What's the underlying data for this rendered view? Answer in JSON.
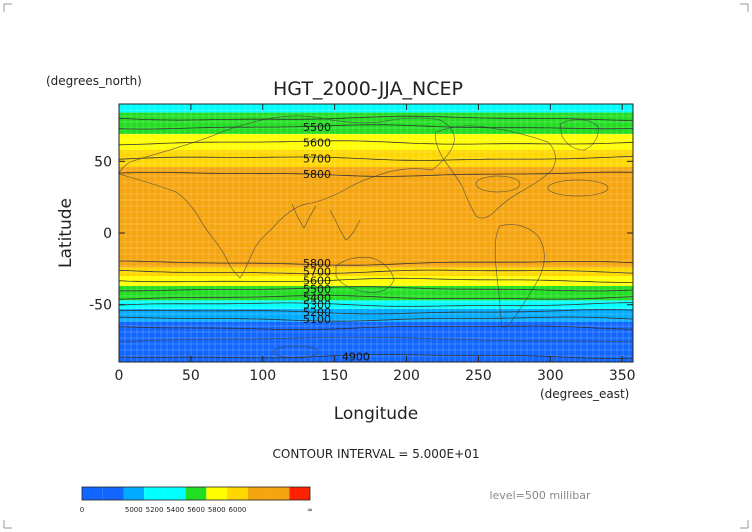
{
  "chart_data": {
    "type": "contour",
    "title": "HGT_2000-JJA_NCEP",
    "xlabel": "Longitude",
    "ylabel": "Latitude",
    "x_units": "(degrees_east)",
    "y_units": "(degrees_north)",
    "xlim": [
      0,
      357.5
    ],
    "ylim": [
      -90,
      90
    ],
    "x_ticks": [
      "0",
      "50",
      "100",
      "150",
      "200",
      "250",
      "300",
      "350"
    ],
    "y_ticks": [
      "50",
      "0",
      "-50"
    ],
    "grid": true,
    "contour_interval": "CONTOUR INTERVAL = 5.000E+01",
    "level": "level=500 millibar",
    "contour_labels": [
      {
        "lon": 128,
        "lat": 74,
        "text": "5500"
      },
      {
        "lon": 128,
        "lat": 63,
        "text": "5600"
      },
      {
        "lon": 128,
        "lat": 52,
        "text": "5700"
      },
      {
        "lon": 128,
        "lat": 41,
        "text": "5800"
      },
      {
        "lon": 128,
        "lat": -21,
        "text": "5800"
      },
      {
        "lon": 128,
        "lat": -27,
        "text": "5700"
      },
      {
        "lon": 128,
        "lat": -33,
        "text": "5600"
      },
      {
        "lon": 128,
        "lat": -39,
        "text": "5500"
      },
      {
        "lon": 128,
        "lat": -45,
        "text": "5400"
      },
      {
        "lon": 128,
        "lat": -50,
        "text": "5300"
      },
      {
        "lon": 128,
        "lat": -55,
        "text": "5200"
      },
      {
        "lon": 128,
        "lat": -60,
        "text": "5100"
      },
      {
        "lon": 155,
        "lat": -86,
        "text": "4900"
      }
    ],
    "fill_bands": [
      {
        "lat_top": 90,
        "lat_bottom": 84,
        "color": "#00ffff"
      },
      {
        "lat_top": 84,
        "lat_bottom": 69,
        "color": "#22dd22"
      },
      {
        "lat_top": 69,
        "lat_bottom": 58,
        "color": "#ffff00"
      },
      {
        "lat_top": 58,
        "lat_bottom": 46,
        "color": "#ffd700"
      },
      {
        "lat_top": 46,
        "lat_bottom": -24,
        "color": "#f5a50f"
      },
      {
        "lat_top": -24,
        "lat_bottom": -30,
        "color": "#ffd700"
      },
      {
        "lat_top": -30,
        "lat_bottom": -37,
        "color": "#ffff00"
      },
      {
        "lat_top": -37,
        "lat_bottom": -47,
        "color": "#22dd22"
      },
      {
        "lat_top": -47,
        "lat_bottom": -53,
        "color": "#00ffff"
      },
      {
        "lat_top": -53,
        "lat_bottom": -62,
        "color": "#00aaff"
      },
      {
        "lat_top": -62,
        "lat_bottom": -90,
        "color": "#1166ff"
      }
    ],
    "contour_lats": [
      80,
      74,
      63,
      52,
      41,
      -21,
      -27,
      -33,
      -39,
      -45,
      -50,
      -55,
      -60,
      -66,
      -86
    ],
    "colorbar": {
      "colors": [
        "#1166ff",
        "#1166ff",
        "#00aaff",
        "#00ffff",
        "#00ffff",
        "#22dd22",
        "#ffff00",
        "#ffd700",
        "#f5a50f",
        "#f5a50f",
        "#ff2200"
      ],
      "labels": [
        "0",
        "5000",
        "5200",
        "5400",
        "5600",
        "5800",
        "6000",
        "∞"
      ]
    }
  }
}
